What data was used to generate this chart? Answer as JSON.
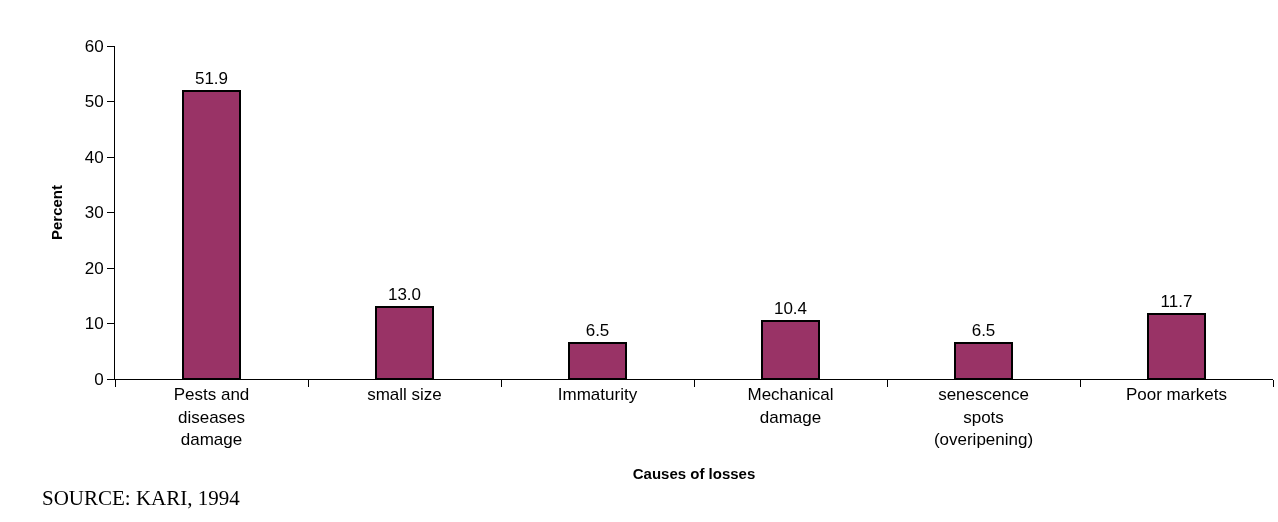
{
  "chart_data": {
    "type": "bar",
    "xlabel": "Causes of losses",
    "ylabel": "Percent",
    "categories": [
      "Pests and diseases damage",
      "small size",
      "Immaturity",
      "Mechanical damage",
      "senescence spots (overipening)",
      "Poor markets"
    ],
    "values": [
      51.9,
      13.0,
      6.5,
      10.4,
      6.5,
      11.7
    ],
    "value_labels": [
      "51.9",
      "13.0",
      "6.5",
      "10.4",
      "6.5",
      "11.7"
    ],
    "color": "#993366",
    "ylim": [
      0,
      60
    ],
    "yticks": [
      0,
      10,
      20,
      30,
      40,
      50,
      60
    ],
    "grid": false,
    "legend": false,
    "annotations": [
      "SOURCE: KARI, 1994"
    ]
  }
}
